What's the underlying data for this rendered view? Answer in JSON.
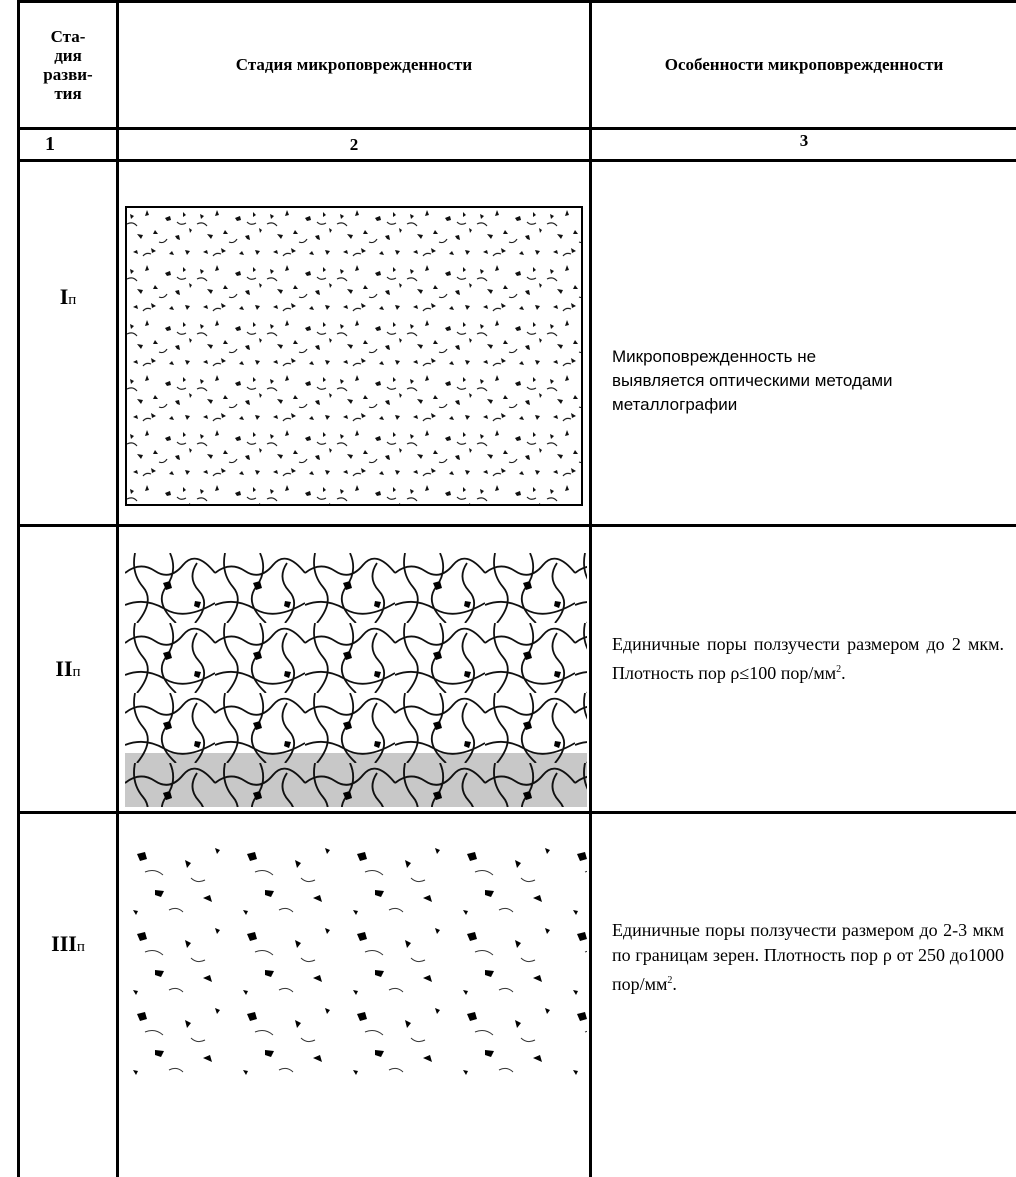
{
  "table": {
    "header": {
      "stage_lines": [
        "Ста-",
        "дия",
        "разви-",
        "тия"
      ],
      "damage_stage": "Стадия микроповрежденности",
      "features": "Особенности микроповрежденности"
    },
    "column_numbers": [
      "1",
      "2",
      "3"
    ],
    "rows": [
      {
        "stage": {
          "numeral": "I",
          "suffix": "п"
        },
        "description": {
          "text": "Микроповрежденность не выявляется оптическими методами металлографии"
        }
      },
      {
        "stage": {
          "numeral": "II",
          "suffix": "п"
        },
        "description": {
          "text": "Единичные поры ползучести размером до 2 мкм. Плотность пор ρ≤100 пор/мм",
          "sup": "2",
          "end": "."
        }
      },
      {
        "stage": {
          "numeral": "III",
          "suffix": "п"
        },
        "description": {
          "text": "Единичные поры ползучести размером до 2-3 мкм по границам зерен. Плотность пор ρ от 250 до1000 пор/мм",
          "sup": "2",
          "end": "."
        }
      }
    ]
  }
}
